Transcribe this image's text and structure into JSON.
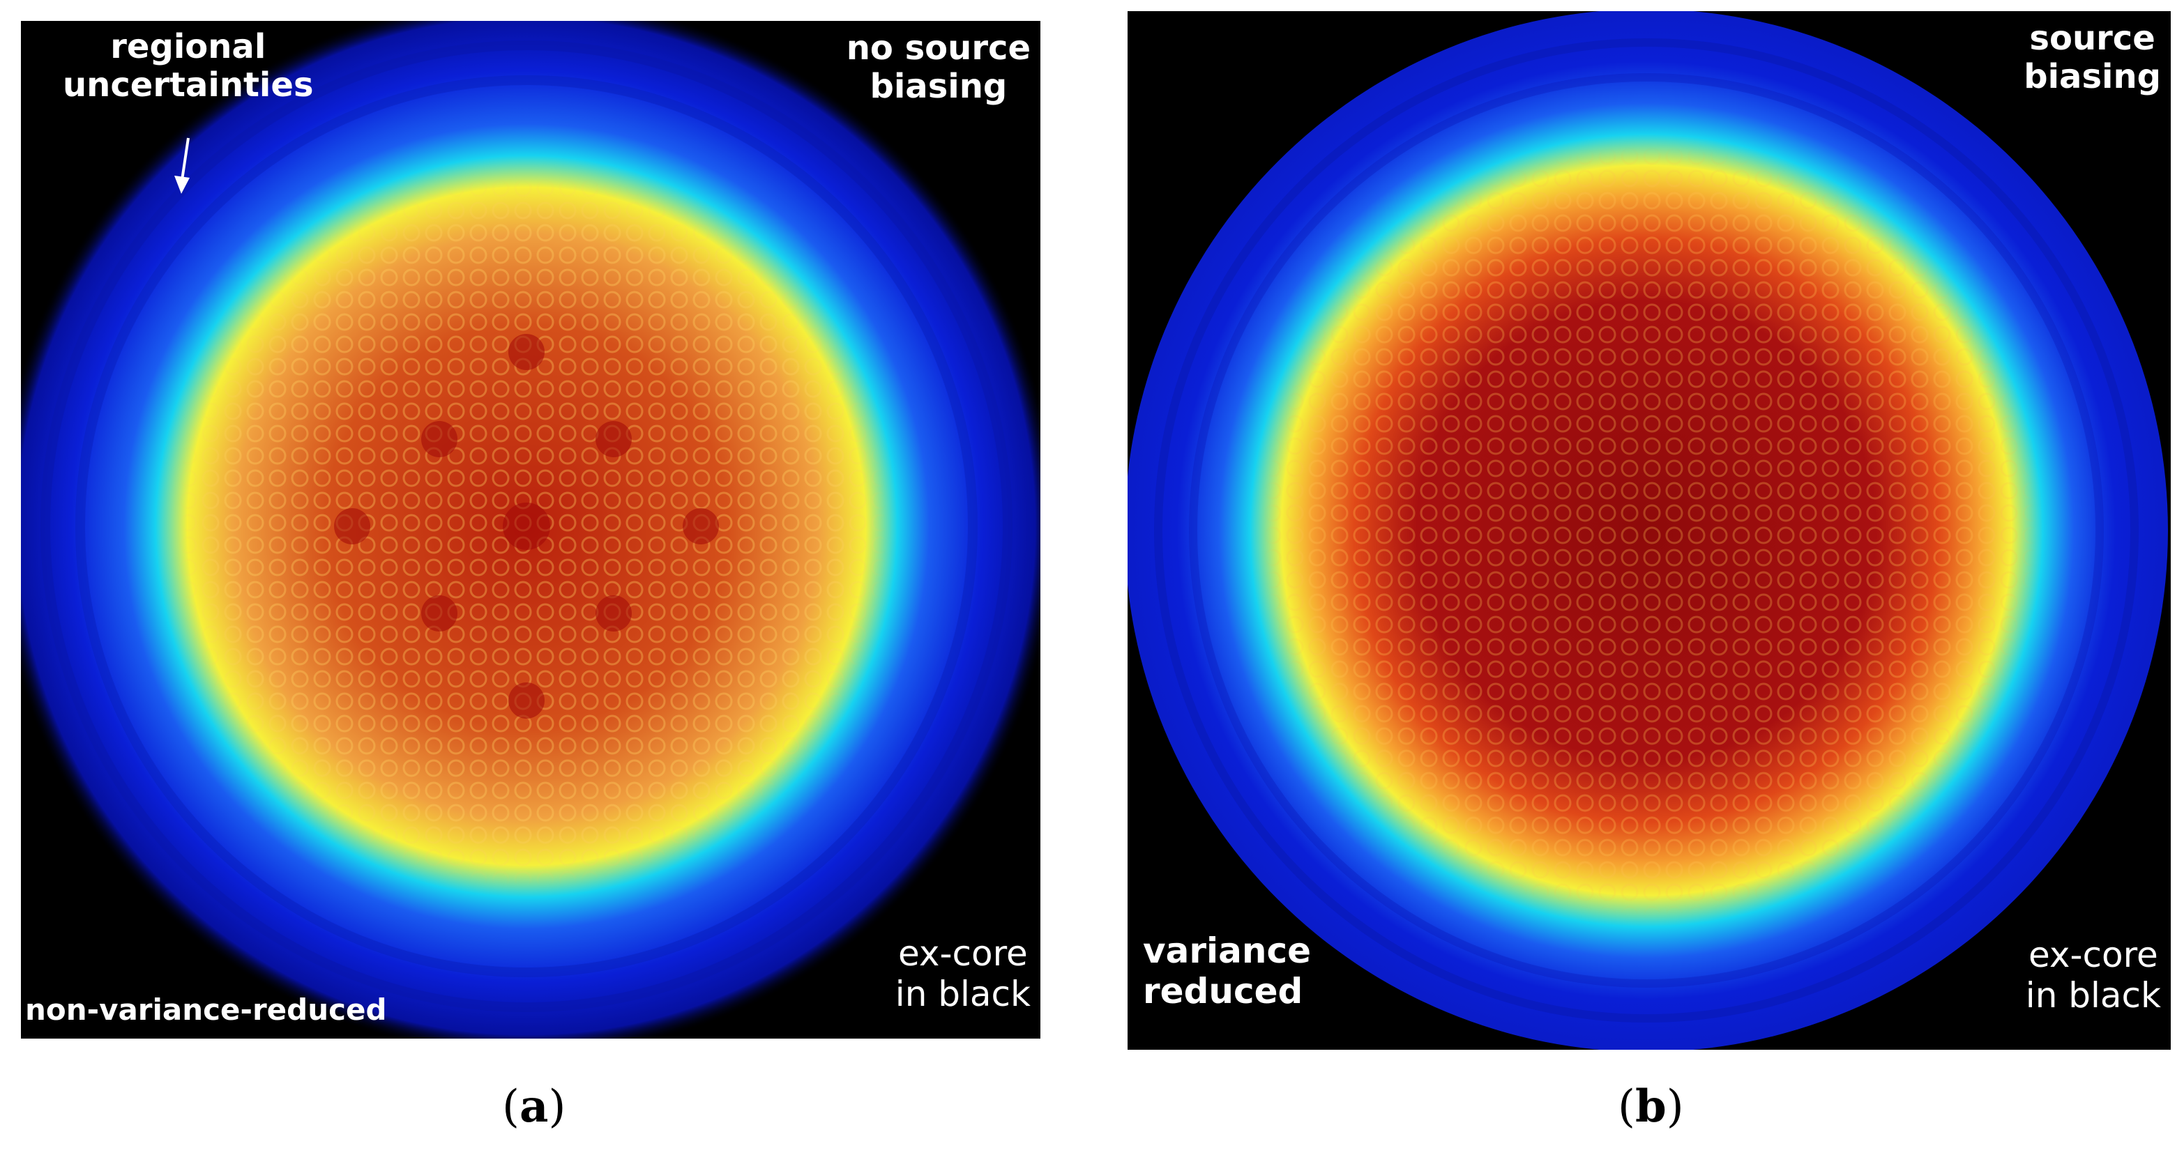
{
  "panels": [
    {
      "id": "a",
      "caption_open": "(",
      "caption_letter": "a",
      "caption_close": ")",
      "corner_top_right": [
        "no source",
        "biasing"
      ],
      "annotation": [
        "regional",
        "uncertainties"
      ],
      "corner_bottom_left": "non-variance-reduced",
      "corner_bottom_right": [
        "ex-core",
        "in black"
      ]
    },
    {
      "id": "b",
      "caption_open": "(",
      "caption_letter": "b",
      "caption_close": ")",
      "corner_top_right": [
        "source",
        "biasing"
      ],
      "corner_bottom_left": [
        "variance",
        "reduced"
      ],
      "corner_bottom_right": [
        "ex-core",
        "in black"
      ]
    }
  ],
  "colors": {
    "background": "#000000",
    "outer_blue": "#0a1fd6",
    "cyan": "#17d2f0",
    "yellow": "#f6f03a",
    "orange": "#f07a1e",
    "dark_red": "#8e0a0a"
  }
}
